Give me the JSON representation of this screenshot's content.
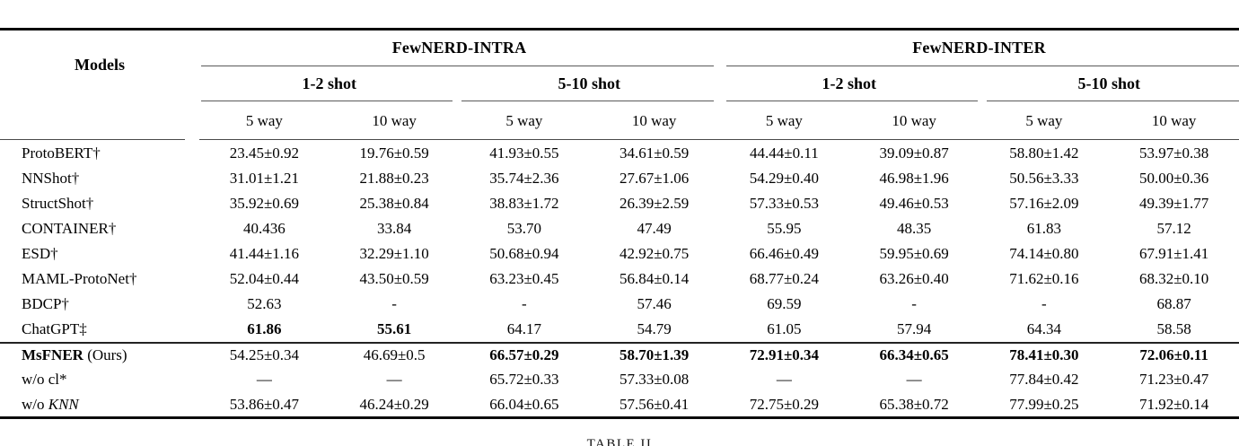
{
  "table": {
    "models_header": "Models",
    "groups": [
      {
        "label": "FewNERD-INTRA"
      },
      {
        "label": "FewNERD-INTER"
      }
    ],
    "shots": [
      "1-2 shot",
      "5-10 shot",
      "1-2 shot",
      "5-10 shot"
    ],
    "ways": [
      "5 way",
      "10 way",
      "5 way",
      "10 way",
      "5 way",
      "10 way",
      "5 way",
      "10 way"
    ],
    "rows": [
      {
        "model_parts": [
          {
            "text": "ProtoBERT†",
            "style": ""
          }
        ],
        "values": [
          "23.45±0.92",
          "19.76±0.59",
          "41.93±0.55",
          "34.61±0.59",
          "44.44±0.11",
          "39.09±0.87",
          "58.80±1.42",
          "53.97±0.38"
        ],
        "bold_cols": [],
        "separator_above": false
      },
      {
        "model_parts": [
          {
            "text": "NNShot†",
            "style": ""
          }
        ],
        "values": [
          "31.01±1.21",
          "21.88±0.23",
          "35.74±2.36",
          "27.67±1.06",
          "54.29±0.40",
          "46.98±1.96",
          "50.56±3.33",
          "50.00±0.36"
        ],
        "bold_cols": [],
        "separator_above": false
      },
      {
        "model_parts": [
          {
            "text": "StructShot†",
            "style": ""
          }
        ],
        "values": [
          "35.92±0.69",
          "25.38±0.84",
          "38.83±1.72",
          "26.39±2.59",
          "57.33±0.53",
          "49.46±0.53",
          "57.16±2.09",
          "49.39±1.77"
        ],
        "bold_cols": [],
        "separator_above": false
      },
      {
        "model_parts": [
          {
            "text": "CONTAINER†",
            "style": ""
          }
        ],
        "values": [
          "40.436",
          "33.84",
          "53.70",
          "47.49",
          "55.95",
          "48.35",
          "61.83",
          "57.12"
        ],
        "bold_cols": [],
        "separator_above": false
      },
      {
        "model_parts": [
          {
            "text": "ESD†",
            "style": ""
          }
        ],
        "values": [
          "41.44±1.16",
          "32.29±1.10",
          "50.68±0.94",
          "42.92±0.75",
          "66.46±0.49",
          "59.95±0.69",
          "74.14±0.80",
          "67.91±1.41"
        ],
        "bold_cols": [],
        "separator_above": false
      },
      {
        "model_parts": [
          {
            "text": "MAML-ProtoNet†",
            "style": ""
          }
        ],
        "values": [
          "52.04±0.44",
          "43.50±0.59",
          "63.23±0.45",
          "56.84±0.14",
          "68.77±0.24",
          "63.26±0.40",
          "71.62±0.16",
          "68.32±0.10"
        ],
        "bold_cols": [],
        "separator_above": false
      },
      {
        "model_parts": [
          {
            "text": "BDCP†",
            "style": ""
          }
        ],
        "values": [
          "52.63",
          "-",
          "-",
          "57.46",
          "69.59",
          "-",
          "-",
          "68.87"
        ],
        "bold_cols": [],
        "separator_above": false
      },
      {
        "model_parts": [
          {
            "text": "ChatGPT‡",
            "style": ""
          }
        ],
        "values": [
          "61.86",
          "55.61",
          "64.17",
          "54.79",
          "61.05",
          "57.94",
          "64.34",
          "58.58"
        ],
        "bold_cols": [
          0,
          1
        ],
        "separator_above": false
      },
      {
        "model_parts": [
          {
            "text": "MsFNER",
            "style": "bold"
          },
          {
            "text": " (Ours)",
            "style": ""
          }
        ],
        "values": [
          "54.25±0.34",
          "46.69±0.5",
          "66.57±0.29",
          "58.70±1.39",
          "72.91±0.34",
          "66.34±0.65",
          "78.41±0.30",
          "72.06±0.11"
        ],
        "bold_cols": [
          2,
          3,
          4,
          5,
          6,
          7
        ],
        "separator_above": true
      },
      {
        "model_parts": [
          {
            "text": "w/o cl*",
            "style": ""
          }
        ],
        "values": [
          "—",
          "—",
          "65.72±0.33",
          "57.33±0.08",
          "—",
          "—",
          "77.84±0.42",
          "71.23±0.47"
        ],
        "bold_cols": [],
        "separator_above": false
      },
      {
        "model_parts": [
          {
            "text": "w/o ",
            "style": ""
          },
          {
            "text": "KNN",
            "style": "italic"
          }
        ],
        "values": [
          "53.86±0.47",
          "46.24±0.29",
          "66.04±0.65",
          "57.56±0.41",
          "72.75±0.29",
          "65.38±0.72",
          "77.99±0.25",
          "71.92±0.14"
        ],
        "bold_cols": [],
        "separator_above": false
      }
    ]
  },
  "caption": "TABLE II"
}
